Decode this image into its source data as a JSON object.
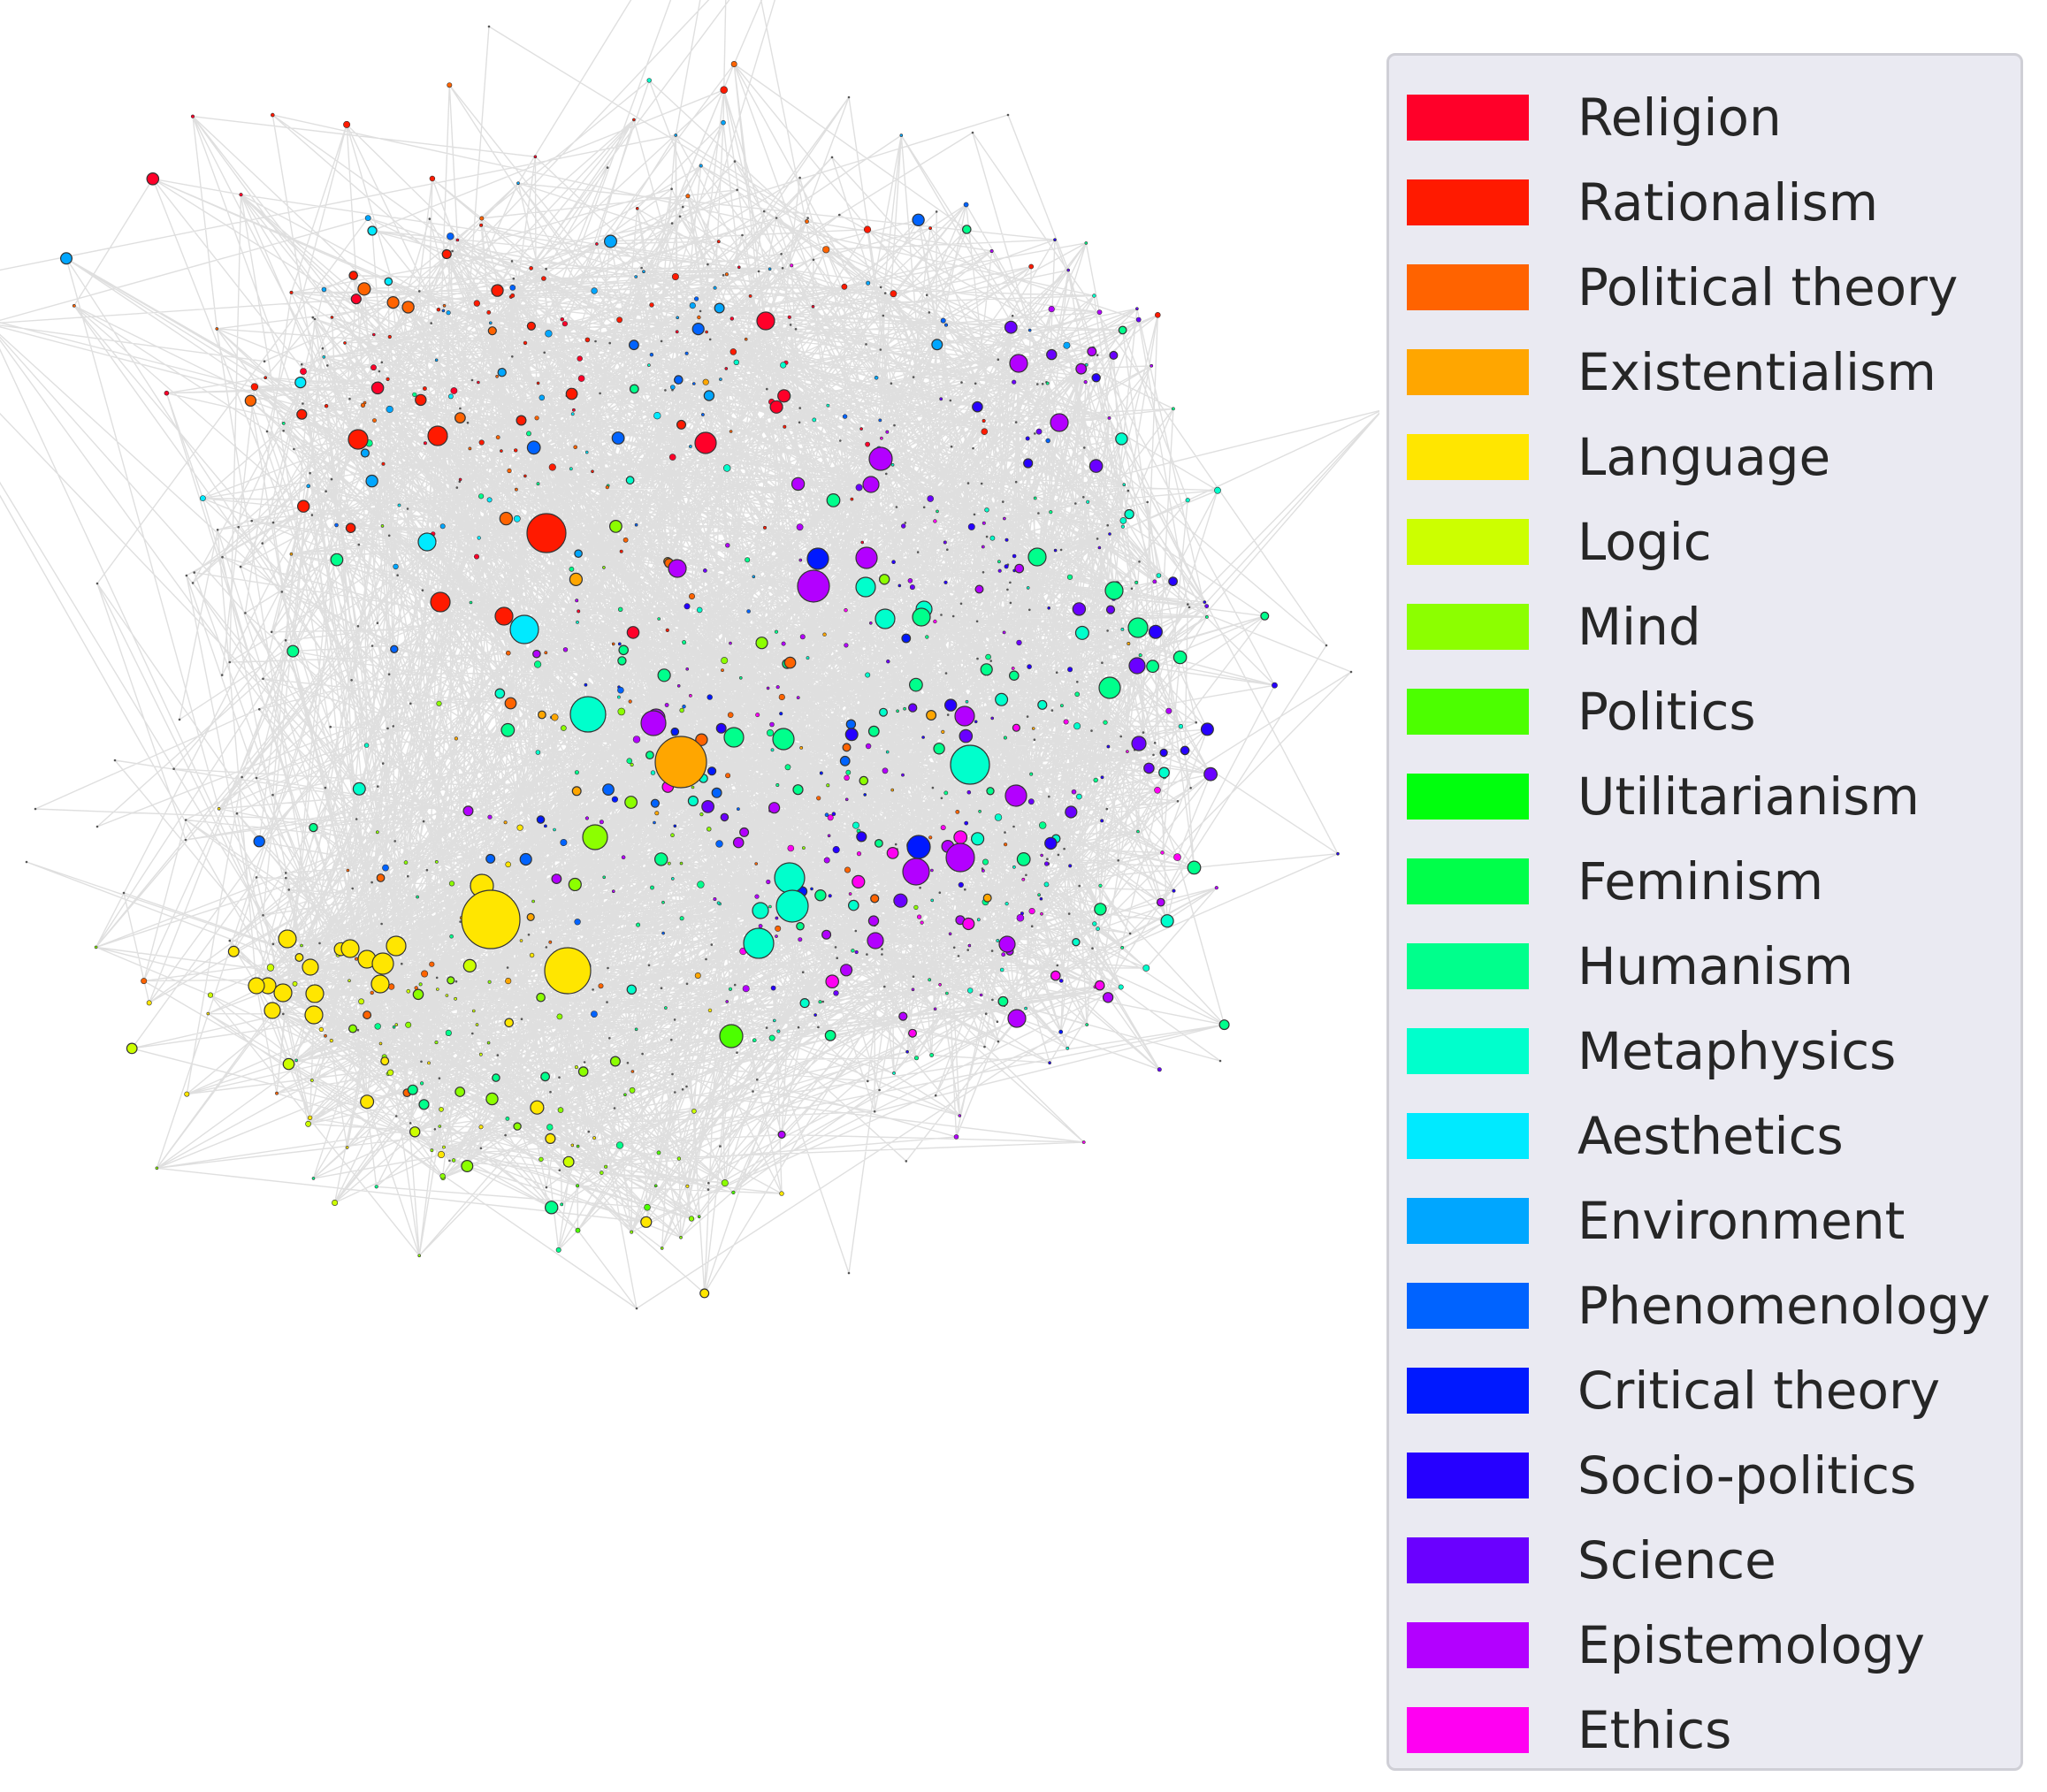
{
  "legend": {
    "items": [
      {
        "label": "Religion",
        "color": "#ff0029"
      },
      {
        "label": "Rationalism",
        "color": "#ff1a00"
      },
      {
        "label": "Political theory",
        "color": "#ff6300"
      },
      {
        "label": "Existentialism",
        "color": "#ffa600"
      },
      {
        "label": "Language",
        "color": "#ffe600"
      },
      {
        "label": "Logic",
        "color": "#ccff00"
      },
      {
        "label": "Mind",
        "color": "#8cff00"
      },
      {
        "label": "Politics",
        "color": "#4cff00"
      },
      {
        "label": "Utilitarianism",
        "color": "#00ff0d"
      },
      {
        "label": "Feminism",
        "color": "#00ff4a"
      },
      {
        "label": "Humanism",
        "color": "#00ff8c"
      },
      {
        "label": "Metaphysics",
        "color": "#00ffcc"
      },
      {
        "label": "Aesthetics",
        "color": "#00eaff"
      },
      {
        "label": "Environment",
        "color": "#00a6ff"
      },
      {
        "label": "Phenomenology",
        "color": "#0063ff"
      },
      {
        "label": "Critical theory",
        "color": "#0019ff"
      },
      {
        "label": "Socio-politics",
        "color": "#2600ff"
      },
      {
        "label": "Science",
        "color": "#6a00ff"
      },
      {
        "label": "Epistemology",
        "color": "#b300ff"
      },
      {
        "label": "Ethics",
        "color": "#ff00f2"
      }
    ]
  },
  "style": {
    "edge_color": "#8c8c8c",
    "node_outline": "#333333",
    "background": "#ffffff"
  }
}
